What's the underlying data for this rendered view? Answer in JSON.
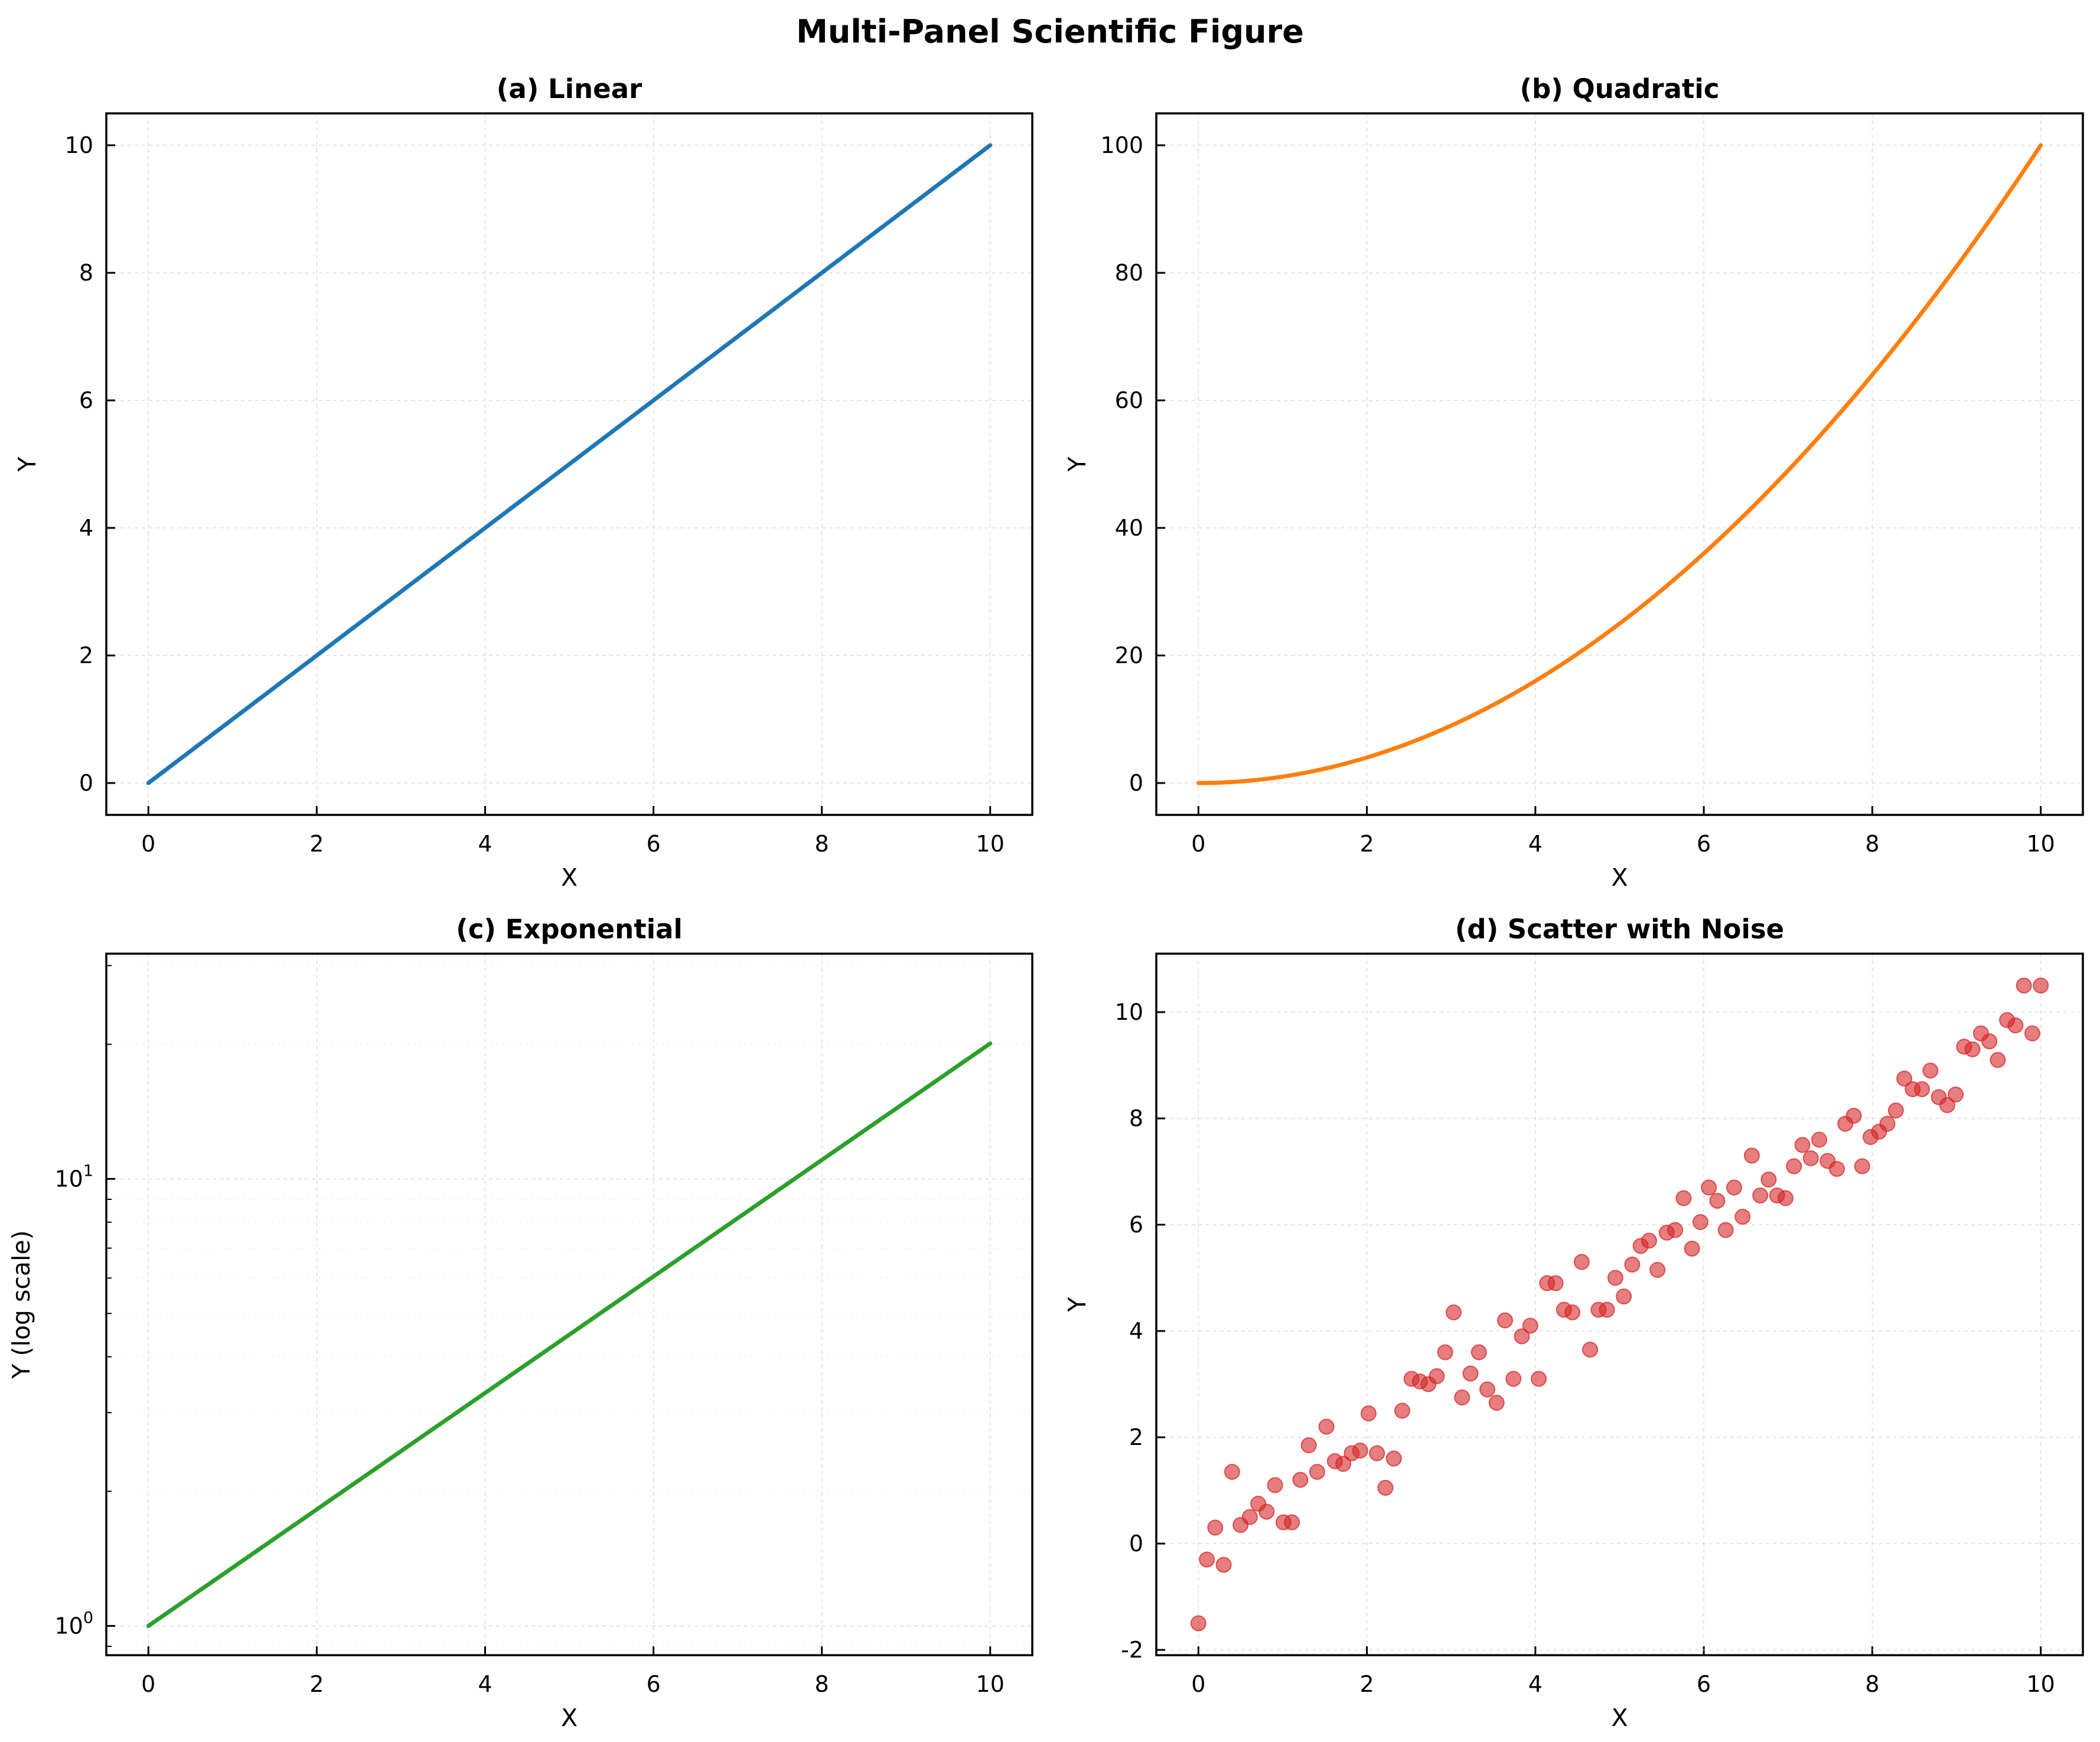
{
  "figure": {
    "title": "Multi-Panel Scientific Figure"
  },
  "chart_data": [
    {
      "id": "a",
      "type": "line",
      "title": "(a) Linear",
      "xlabel": "X",
      "ylabel": "Y",
      "xlim": [
        -0.5,
        10.5
      ],
      "ylim": [
        -0.5,
        10.5
      ],
      "xticks": [
        0,
        2,
        4,
        6,
        8,
        10
      ],
      "yticks": [
        0,
        2,
        4,
        6,
        8,
        10
      ],
      "yscale": "linear",
      "grid": true,
      "series": [
        {
          "color": "#1f77b4",
          "function": "y = x",
          "x": [
            0,
            10
          ],
          "y": [
            0,
            10
          ]
        }
      ]
    },
    {
      "id": "b",
      "type": "line",
      "title": "(b) Quadratic",
      "xlabel": "X",
      "ylabel": "Y",
      "xlim": [
        -0.5,
        10.5
      ],
      "ylim": [
        -5,
        105
      ],
      "xticks": [
        0,
        2,
        4,
        6,
        8,
        10
      ],
      "yticks": [
        0,
        20,
        40,
        60,
        80,
        100
      ],
      "yscale": "linear",
      "grid": true,
      "series": [
        {
          "color": "#ff7f0e",
          "function": "y = x^2",
          "x": [
            0,
            10
          ],
          "y": [
            0,
            100
          ]
        }
      ]
    },
    {
      "id": "c",
      "type": "line",
      "title": "(c) Exponential",
      "xlabel": "X",
      "ylabel": "Y (log scale)",
      "xlim": [
        -0.5,
        10.5
      ],
      "ylim": [
        0.86,
        31.9
      ],
      "xticks": [
        0,
        2,
        4,
        6,
        8,
        10
      ],
      "yticks": [
        1,
        10
      ],
      "ytick_labels": [
        {
          "base": "10",
          "exp": "0"
        },
        {
          "base": "10",
          "exp": "1"
        }
      ],
      "yscale": "log",
      "grid": true,
      "series": [
        {
          "color": "#2ca02c",
          "function": "y = exp(0.3x)",
          "x": [
            0,
            10
          ],
          "y": [
            1,
            20.09
          ]
        }
      ]
    },
    {
      "id": "d",
      "type": "scatter",
      "title": "(d) Scatter with Noise",
      "xlabel": "X",
      "ylabel": "Y",
      "xlim": [
        -0.5,
        10.5
      ],
      "ylim": [
        -2.1,
        11.1
      ],
      "xticks": [
        0,
        2,
        4,
        6,
        8,
        10
      ],
      "yticks": [
        -2,
        0,
        2,
        4,
        6,
        8,
        10
      ],
      "yscale": "linear",
      "grid": true,
      "series": [
        {
          "color": "#d62728",
          "x": [
            0.0,
            0.1,
            0.2,
            0.3,
            0.4,
            0.5,
            0.61,
            0.71,
            0.81,
            0.91,
            1.01,
            1.11,
            1.21,
            1.31,
            1.41,
            1.52,
            1.62,
            1.72,
            1.82,
            1.92,
            2.02,
            2.12,
            2.22,
            2.32,
            2.42,
            2.53,
            2.63,
            2.73,
            2.83,
            2.93,
            3.03,
            3.13,
            3.23,
            3.33,
            3.43,
            3.54,
            3.64,
            3.74,
            3.84,
            3.94,
            4.04,
            4.14,
            4.24,
            4.34,
            4.44,
            4.55,
            4.65,
            4.75,
            4.85,
            4.95,
            5.05,
            5.15,
            5.25,
            5.35,
            5.45,
            5.56,
            5.66,
            5.76,
            5.86,
            5.96,
            6.06,
            6.16,
            6.26,
            6.36,
            6.46,
            6.57,
            6.67,
            6.77,
            6.87,
            6.97,
            7.07,
            7.17,
            7.27,
            7.37,
            7.47,
            7.58,
            7.68,
            7.78,
            7.88,
            7.98,
            8.08,
            8.18,
            8.28,
            8.38,
            8.48,
            8.59,
            8.69,
            8.79,
            8.89,
            8.99,
            9.09,
            9.19,
            9.29,
            9.39,
            9.49,
            9.6,
            9.7,
            9.8,
            9.9,
            10.0
          ],
          "y": [
            -1.5,
            -0.3,
            0.3,
            -0.4,
            1.35,
            0.35,
            0.5,
            0.75,
            0.6,
            1.1,
            0.4,
            0.4,
            1.2,
            1.85,
            1.35,
            2.2,
            1.55,
            1.5,
            1.7,
            1.75,
            2.45,
            1.7,
            1.05,
            1.6,
            2.5,
            3.1,
            3.05,
            3.0,
            3.15,
            3.6,
            4.35,
            2.75,
            3.2,
            3.6,
            2.9,
            2.65,
            4.2,
            3.1,
            3.9,
            4.1,
            3.1,
            4.9,
            4.9,
            4.4,
            4.35,
            5.3,
            3.65,
            4.4,
            4.4,
            5.0,
            4.65,
            5.25,
            5.6,
            5.7,
            5.15,
            5.85,
            5.9,
            6.5,
            5.55,
            6.05,
            6.7,
            6.45,
            5.9,
            6.7,
            6.15,
            7.3,
            6.55,
            6.85,
            6.55,
            6.5,
            7.1,
            7.5,
            7.25,
            7.6,
            7.2,
            7.05,
            7.9,
            8.05,
            7.1,
            7.65,
            7.75,
            7.9,
            8.15,
            8.75,
            8.55,
            8.55,
            8.9,
            8.4,
            8.25,
            8.45,
            9.35,
            9.3,
            9.6,
            9.45,
            9.1,
            9.85,
            9.75,
            10.5,
            9.6,
            10.5
          ]
        }
      ]
    }
  ]
}
